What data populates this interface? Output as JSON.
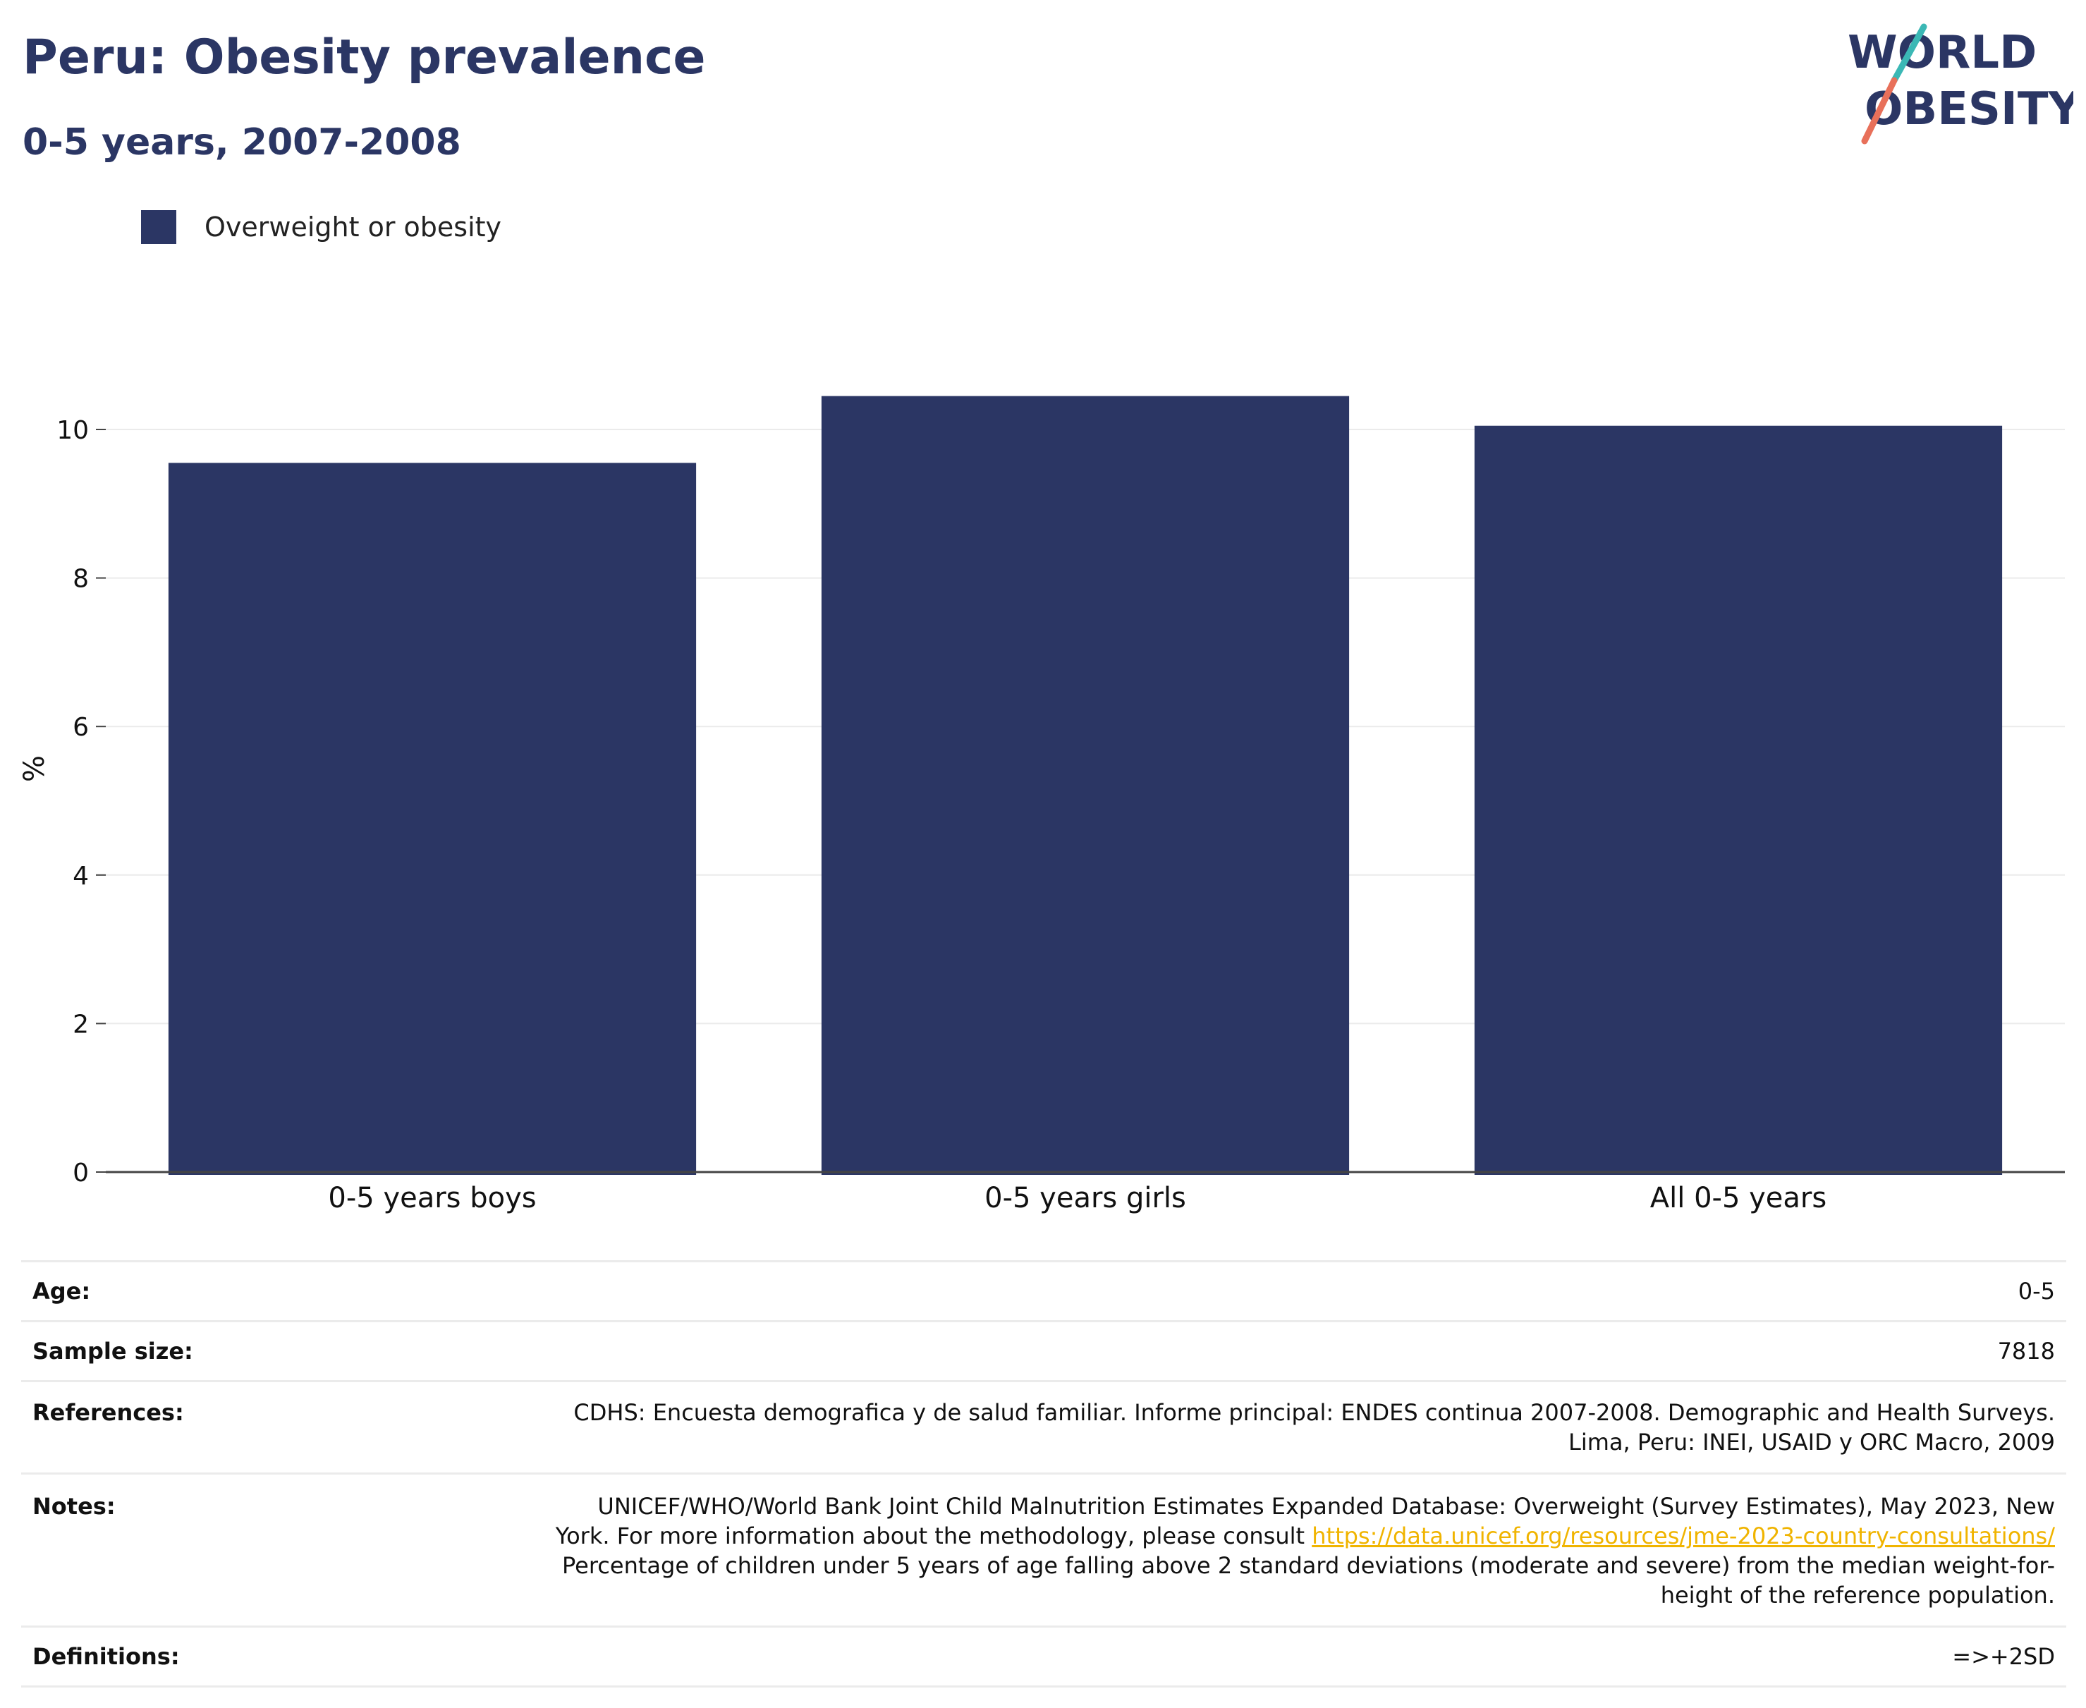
{
  "header": {
    "title": "Peru: Obesity prevalence",
    "subtitle": "0-5 years, 2007-2008"
  },
  "logo": {
    "line1": "WORLD",
    "line2": "OBESITY"
  },
  "legend": {
    "label": "Overweight or obesity",
    "color": "#2b3664"
  },
  "chart_data": {
    "type": "bar",
    "title": "Peru: Obesity prevalence",
    "subtitle": "0-5 years, 2007-2008",
    "categories": [
      "0-5 years boys",
      "0-5 years girls",
      "All 0-5 years"
    ],
    "series": [
      {
        "name": "Overweight or obesity",
        "color": "#2b3664",
        "values": [
          9.55,
          10.45,
          10.05
        ]
      }
    ],
    "xlabel": "",
    "ylabel": "%",
    "ylim": [
      0,
      10.5
    ],
    "yticks": [
      0,
      2,
      4,
      6,
      8,
      10
    ],
    "grid": true,
    "legend_position": "top-left"
  },
  "info": {
    "age": {
      "label": "Age:",
      "value": "0-5"
    },
    "sample_size": {
      "label": "Sample size:",
      "value": "7818"
    },
    "references": {
      "label": "References:",
      "line1": "CDHS: Encuesta demografica y de salud familiar. Informe principal: ENDES continua 2007-2008. Demographic and Health Surveys.",
      "line2": "Lima, Peru: INEI, USAID y ORC Macro, 2009"
    },
    "notes": {
      "label": "Notes:",
      "line1": "UNICEF/WHO/World Bank Joint Child Malnutrition Estimates Expanded Database: Overweight (Survey Estimates), May 2023, New",
      "line2_prefix": "York. For more information about the methodology, please consult ",
      "link": "https://data.unicef.org/resources/jme-2023-country-consultations/",
      "line3": "Percentage of children under 5 years of age falling above 2 standard deviations (moderate and severe) from the median weight-for-",
      "line4": "height of the reference population."
    },
    "definitions": {
      "label": "Definitions:",
      "value": "=>+2SD"
    }
  }
}
